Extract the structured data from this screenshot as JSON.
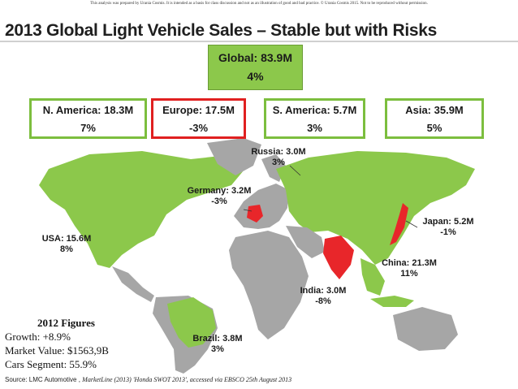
{
  "disclaimer": "This analysis was prepared by Urania Cosmis. It is intended as a basis for class discussion and not as an illustration of good and bad practice. © Urania Cosmis 2015. Not to be reproduced without permission.",
  "title": "2013 Global Light Vehicle Sales – Stable but with Risks",
  "global": {
    "label": "Global: 83.9M",
    "change": "4%"
  },
  "regions": [
    {
      "label": "N. America: 18.3M",
      "change": "7%"
    },
    {
      "label": "Europe: 17.5M",
      "change": "-3%"
    },
    {
      "label": "S. America: 5.7M",
      "change": "3%"
    },
    {
      "label": "Asia: 35.9M",
      "change": "5%"
    }
  ],
  "countries": {
    "russia": {
      "label": "Russia: 3.0M",
      "change": "3%"
    },
    "germany": {
      "label": "Germany: 3.2M",
      "change": "-3%"
    },
    "japan": {
      "label": "Japan: 5.2M",
      "change": "-1%"
    },
    "usa": {
      "label": "USA: 15.6M",
      "change": "8%"
    },
    "china": {
      "label": "China: 21.3M",
      "change": "11%"
    },
    "india": {
      "label": "India: 3.0M",
      "change": "-8%"
    },
    "brazil": {
      "label": "Brazil: 3.8M",
      "change": "3%"
    }
  },
  "figures": {
    "heading": "2012 Figures",
    "growth": "Growth: +8.9%",
    "market_value": "Market Value: $1563,9B",
    "cars_segment": "Cars Segment: 55.9%"
  },
  "source": {
    "prefix": "Source: LMC Automotive ,",
    "reference": "MarketLine (2013) 'Honda SWOT 2013', accessed via EBSCO 25th August 2013"
  },
  "colors": {
    "green": "#8cc84b",
    "grey": "#a6a6a6",
    "red": "#e8262a",
    "box_border": "#7cbe3e",
    "europe_border": "#e02020"
  }
}
